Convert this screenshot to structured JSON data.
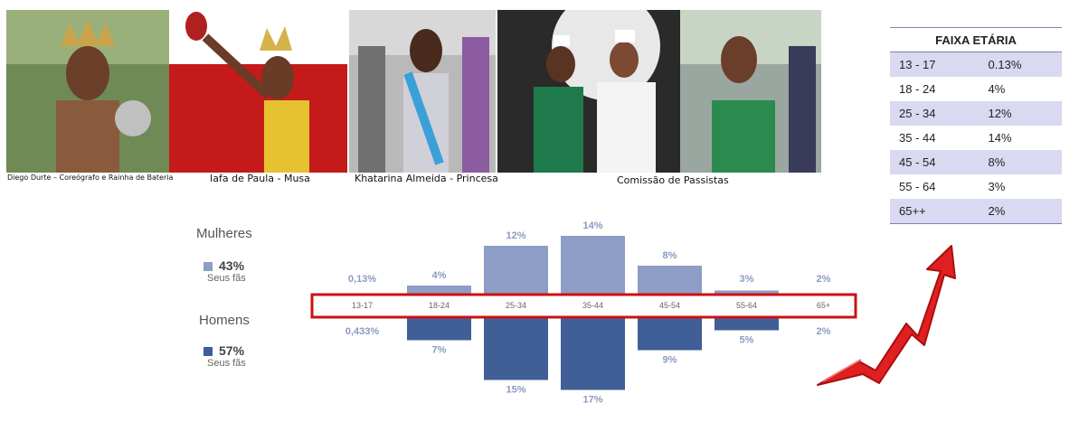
{
  "photos": [
    {
      "caption": "Diego Durte – Coreógrafo  e  Rainha de Bateria"
    },
    {
      "caption": "Iafa de Paula - Musa"
    },
    {
      "caption": "Khatarina Almeida - Princesa"
    },
    {
      "caption": "Comissão de Passistas"
    }
  ],
  "table": {
    "title": "FAIXA ETÁRIA",
    "rows": [
      {
        "range": "13 - 17",
        "pct": "0.13%"
      },
      {
        "range": "18 - 24",
        "pct": "4%"
      },
      {
        "range": "25 - 34",
        "pct": "12%"
      },
      {
        "range": "35 - 44",
        "pct": "14%"
      },
      {
        "range": "45 - 54",
        "pct": "8%"
      },
      {
        "range": "55 - 64",
        "pct": "3%"
      },
      {
        "range": "65++",
        "pct": "2%"
      }
    ]
  },
  "legend": {
    "women": {
      "title": "Mulheres",
      "pct": "43%",
      "sub": "Seus fãs"
    },
    "men": {
      "title": "Homens",
      "pct": "57%",
      "sub": "Seus fãs"
    }
  },
  "colors": {
    "women": "#8e9dc6",
    "men": "#3f5f96",
    "highlight": "#cc1111",
    "arrow": "#e02020"
  },
  "chart_data": {
    "type": "bar",
    "categories": [
      "13-17",
      "18-24",
      "25-34",
      "35-44",
      "45-54",
      "55-64",
      "65+"
    ],
    "series": [
      {
        "name": "Mulheres",
        "values": [
          0.13,
          4,
          12,
          14,
          8,
          3,
          2
        ],
        "labels": [
          "0,13%",
          "4%",
          "12%",
          "14%",
          "8%",
          "3%",
          "2%"
        ]
      },
      {
        "name": "Homens",
        "values": [
          0.433,
          7,
          15,
          17,
          9,
          5,
          2
        ],
        "labels": [
          "0,433%",
          "7%",
          "15%",
          "17%",
          "9%",
          "5%",
          "2%"
        ]
      }
    ]
  }
}
